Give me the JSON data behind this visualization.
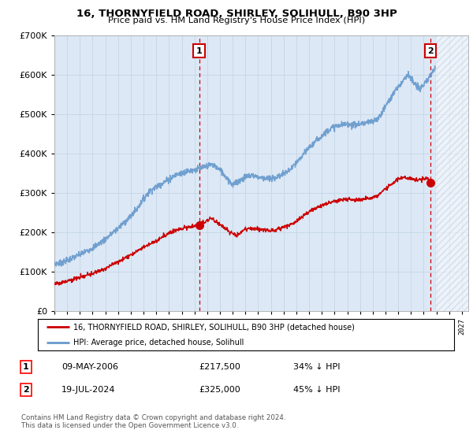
{
  "title": "16, THORNYFIELD ROAD, SHIRLEY, SOLIHULL, B90 3HP",
  "subtitle": "Price paid vs. HM Land Registry's House Price Index (HPI)",
  "ylim": [
    0,
    700000
  ],
  "yticks": [
    0,
    100000,
    200000,
    300000,
    400000,
    500000,
    600000,
    700000
  ],
  "ytick_labels": [
    "£0",
    "£100K",
    "£200K",
    "£300K",
    "£400K",
    "£500K",
    "£600K",
    "£700K"
  ],
  "xlim_start": 1995.0,
  "xlim_end": 2027.5,
  "sale1_date": 2006.36,
  "sale1_price": 217500,
  "sale2_date": 2024.54,
  "sale2_price": 325000,
  "red_color": "#cc0000",
  "blue_color": "#6699cc",
  "hatch_color": "#bbccdd",
  "grid_color": "#c8d8e8",
  "background_color": "#ffffff",
  "plot_bg_color": "#dce8f5",
  "legend1": "16, THORNYFIELD ROAD, SHIRLEY, SOLIHULL, B90 3HP (detached house)",
  "legend2": "HPI: Average price, detached house, Solihull",
  "table_row1": [
    "1",
    "09-MAY-2006",
    "£217,500",
    "34% ↓ HPI"
  ],
  "table_row2": [
    "2",
    "19-JUL-2024",
    "£325,000",
    "45% ↓ HPI"
  ],
  "footnote1": "Contains HM Land Registry data © Crown copyright and database right 2024.",
  "footnote2": "This data is licensed under the Open Government Licence v3.0."
}
